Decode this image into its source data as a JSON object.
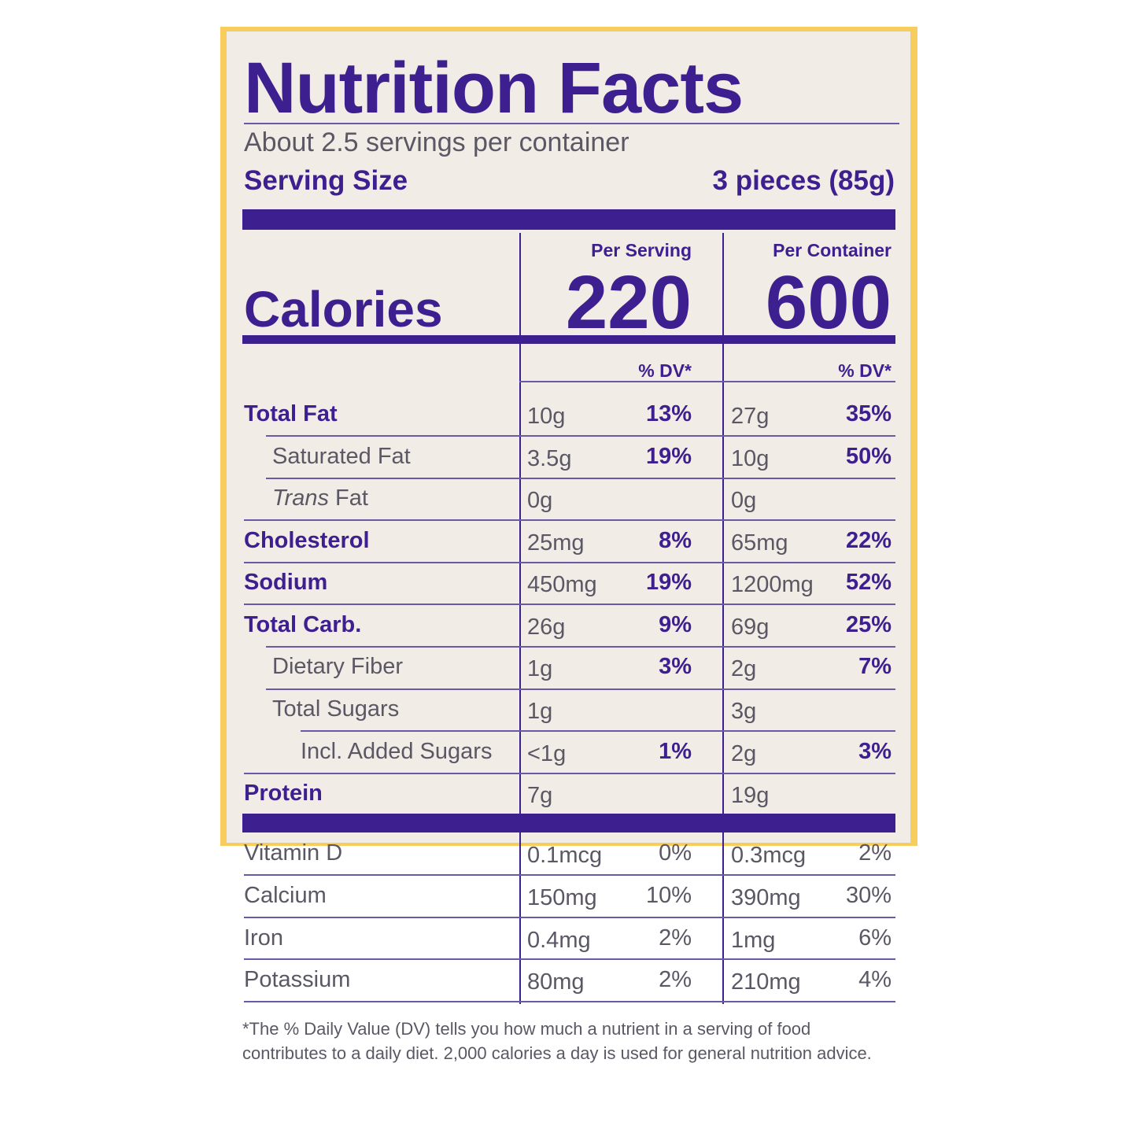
{
  "label": {
    "title": "Nutrition Facts",
    "servings_per_container": "About 2.5 servings per container",
    "serving_size_label": "Serving Size",
    "serving_size_value": "3 pieces (85g)",
    "per_serving_label": "Per Serving",
    "per_container_label": "Per Container",
    "calories_label": "Calories",
    "calories_per_serving": "220",
    "calories_per_container": "600",
    "dv_header": "% DV*",
    "nutrients": [
      {
        "name": "Total Fat",
        "serving_amount": "10g",
        "serving_dv": "13%",
        "container_amount": "27g",
        "container_dv": "35%"
      },
      {
        "name": "Saturated Fat",
        "serving_amount": "3.5g",
        "serving_dv": "19%",
        "container_amount": "10g",
        "container_dv": "50%"
      },
      {
        "name_italic": "Trans",
        "name_rest": " Fat",
        "serving_amount": "0g",
        "serving_dv": "",
        "container_amount": "0g",
        "container_dv": ""
      },
      {
        "name": "Cholesterol",
        "serving_amount": "25mg",
        "serving_dv": "8%",
        "container_amount": "65mg",
        "container_dv": "22%"
      },
      {
        "name": "Sodium",
        "serving_amount": "450mg",
        "serving_dv": "19%",
        "container_amount": "1200mg",
        "container_dv": "52%"
      },
      {
        "name": "Total Carb.",
        "serving_amount": "26g",
        "serving_dv": "9%",
        "container_amount": "69g",
        "container_dv": "25%"
      },
      {
        "name": "Dietary Fiber",
        "serving_amount": "1g",
        "serving_dv": "3%",
        "container_amount": "2g",
        "container_dv": "7%"
      },
      {
        "name": "Total Sugars",
        "serving_amount": "1g",
        "serving_dv": "",
        "container_amount": "3g",
        "container_dv": ""
      },
      {
        "name": "Incl. Added Sugars",
        "serving_amount": "<1g",
        "serving_dv": "1%",
        "container_amount": "2g",
        "container_dv": "3%"
      },
      {
        "name": "Protein",
        "serving_amount": "7g",
        "serving_dv": "",
        "container_amount": "19g",
        "container_dv": ""
      }
    ],
    "vitamins": [
      {
        "name": "Vitamin D",
        "serving_amount": "0.1mcg",
        "serving_dv": "0%",
        "container_amount": "0.3mcg",
        "container_dv": "2%"
      },
      {
        "name": "Calcium",
        "serving_amount": "150mg",
        "serving_dv": "10%",
        "container_amount": "390mg",
        "container_dv": "30%"
      },
      {
        "name": "Iron",
        "serving_amount": "0.4mg",
        "serving_dv": "2%",
        "container_amount": "1mg",
        "container_dv": "6%"
      },
      {
        "name": "Potassium",
        "serving_amount": "80mg",
        "serving_dv": "2%",
        "container_amount": "210mg",
        "container_dv": "4%"
      }
    ],
    "footnote": "*The % Daily Value (DV) tells you how much a nutrient in a serving of food contributes to a daily diet. 2,000 calories a day is used for general nutrition advice."
  },
  "colors": {
    "ink": "#3d1f8f",
    "border": "#f7cd5e",
    "background": "#f1ece6"
  }
}
